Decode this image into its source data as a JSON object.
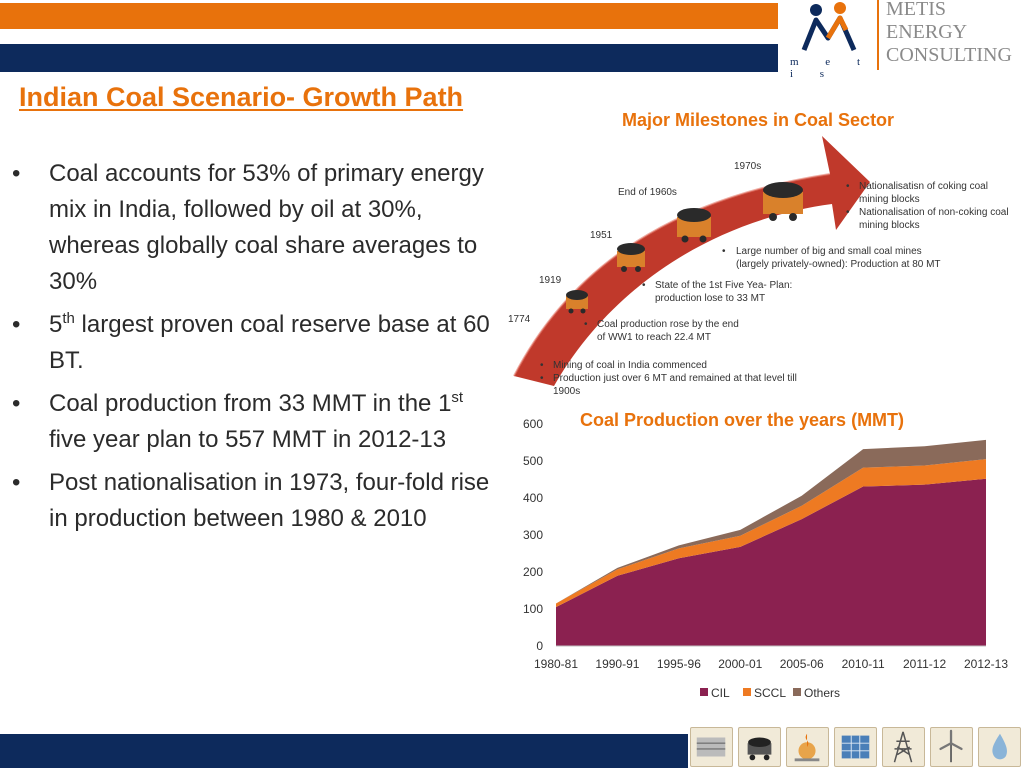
{
  "header": {
    "logo_letters": "m e t i s",
    "logo_lines": [
      "METIS",
      "ENERGY",
      "CONSULTING"
    ],
    "brand_colors": {
      "orange": "#e8720c",
      "navy": "#0d2a5c"
    }
  },
  "title": "Indian Coal Scenario- Growth Path",
  "bullets": [
    {
      "pre": "Coal accounts for 53% of primary energy mix in India, followed by oil at 30%, whereas globally coal share averages to 30%",
      "sup": "",
      "post": ""
    },
    {
      "pre": "5",
      "sup": "th",
      "post": " largest proven coal reserve base at 60 BT."
    },
    {
      "pre": "Coal production from 33 MMT in the 1",
      "sup": "st",
      "post": " five year plan to 557 MMT in 2012-13"
    },
    {
      "pre": "Post nationalisation in 1973, four-fold rise in production between 1980 & 2010",
      "sup": "",
      "post": ""
    }
  ],
  "milestones": {
    "title": "Major Milestones in Coal Sector",
    "years": [
      "1774",
      "1919",
      "1951",
      "End of 1960s",
      "1970s"
    ],
    "notes": [
      {
        "lines": [
          "Mining of coal in India commenced",
          "Production just over 6 MT and remained at that level till",
          "1900s"
        ]
      },
      {
        "lines": [
          "Coal production rose by the end",
          "of WW1 to reach 22.4 MT"
        ]
      },
      {
        "lines": [
          "State of the 1st Five Yea- Plan:",
          "production lose to 33 MT"
        ]
      },
      {
        "lines": [
          "Large number of big and small coal mines",
          "(largely privately-owned): Production at 80 MT"
        ]
      },
      {
        "lines": [
          "Nationalisatisn of coking coal",
          "mining blocks",
          "Nationalisation of non-coking coal",
          "mining blocks"
        ]
      }
    ]
  },
  "chart_data": {
    "type": "area",
    "title": "Coal Production over the years (MMT)",
    "categories": [
      "1980-81",
      "1990-91",
      "1995-96",
      "2000-01",
      "2005-06",
      "2010-11",
      "2011-12",
      "2012-13"
    ],
    "series": [
      {
        "name": "CIL",
        "values": [
          105,
          190,
          237,
          268,
          343,
          431,
          436,
          452
        ],
        "color": "#8b2150"
      },
      {
        "name": "SCCL",
        "values": [
          10,
          17,
          27,
          30,
          36,
          51,
          52,
          53
        ],
        "color": "#ee7a22"
      },
      {
        "name": "Others",
        "values": [
          0,
          4,
          8,
          16,
          27,
          50,
          52,
          52
        ],
        "color": "#8a6a5a"
      }
    ],
    "stacked": true,
    "ylim": [
      0,
      600
    ],
    "yticks": [
      0,
      100,
      200,
      300,
      400,
      500,
      600
    ],
    "legend_position": "bottom"
  },
  "footer": {
    "icons": [
      "oil-gas-icon",
      "coal-cart-icon",
      "refinery-icon",
      "solar-panel-icon",
      "transmission-tower-icon",
      "wind-turbine-icon",
      "water-drop-icon"
    ]
  }
}
